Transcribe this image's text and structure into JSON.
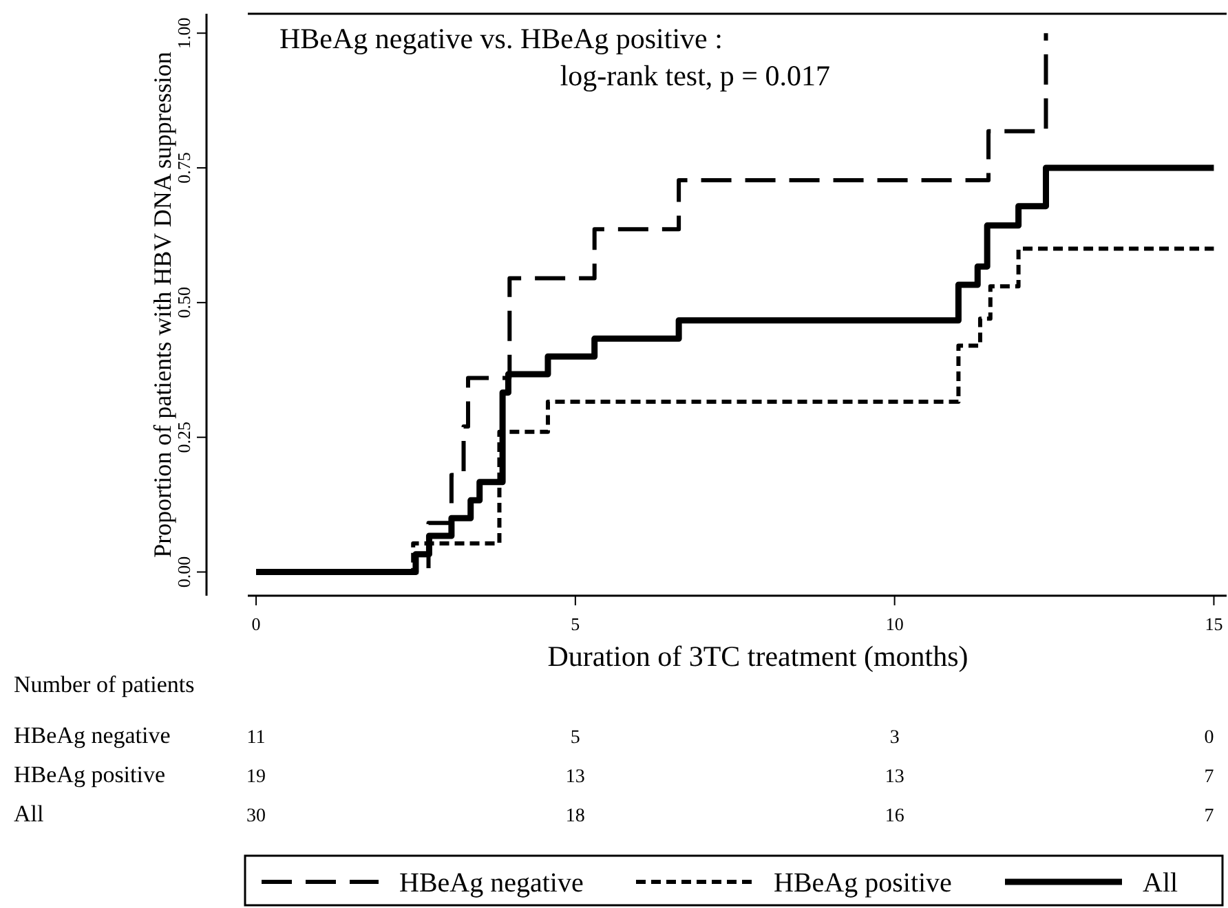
{
  "chart_data": {
    "type": "step",
    "xlabel": "Duration of 3TC treatment (months)",
    "ylabel": "Proportion of patients with HBV DNA suppression",
    "xlim": [
      -0.13,
      15.2
    ],
    "ylim": [
      -0.044,
      1.036
    ],
    "xticks": [
      0,
      5,
      10,
      15
    ],
    "yticks": [
      {
        "value": 0,
        "label": "0.00"
      },
      {
        "value": 0.25,
        "label": "0.25"
      },
      {
        "value": 0.5,
        "label": "0.50"
      },
      {
        "value": 0.75,
        "label": "0.75"
      },
      {
        "value": 1,
        "label": "1.00"
      }
    ],
    "grid": false,
    "legend": "bottom",
    "marker": "none",
    "series": [
      {
        "name": "HBeAg negative",
        "color": "#000000",
        "line_style": "dashed",
        "x": [
          0,
          2.7,
          3.06,
          3.25,
          3.32,
          3.97,
          5.3,
          6.62,
          11.47,
          12.37
        ],
        "values": [
          0,
          0.091,
          0.18,
          0.27,
          0.36,
          0.545,
          0.636,
          0.727,
          0.818,
          1.0
        ]
      },
      {
        "name": "HBeAg positive",
        "color": "#000000",
        "line_style": "dotted",
        "x": [
          0,
          2.46,
          2.9,
          3.81,
          4.57,
          11.0,
          11.34,
          11.5,
          11.94,
          15
        ],
        "values": [
          0,
          0.053,
          0.053,
          0.26,
          0.316,
          0.42,
          0.47,
          0.53,
          0.6,
          0.6
        ]
      },
      {
        "name": "All",
        "color": "#000000",
        "line_style": "solid",
        "x": [
          0,
          2.5,
          2.71,
          3.06,
          3.36,
          3.5,
          3.86,
          3.95,
          4.57,
          5.3,
          6.62,
          11.0,
          11.3,
          11.45,
          11.94,
          12.37,
          15
        ],
        "values": [
          0,
          0.033,
          0.067,
          0.1,
          0.133,
          0.167,
          0.333,
          0.367,
          0.4,
          0.433,
          0.467,
          0.533,
          0.567,
          0.643,
          0.679,
          0.75,
          0.75
        ]
      }
    ],
    "annotations": [
      "HBeAg negative vs. HBeAg positive :",
      "log-rank test, p = 0.017",
      "Number of patients",
      "HBeAg negative",
      "11",
      "5",
      "3",
      "0",
      "HBeAg positive",
      "19",
      "13",
      "13",
      "7",
      "All",
      "30",
      "18",
      "16",
      "7"
    ]
  }
}
